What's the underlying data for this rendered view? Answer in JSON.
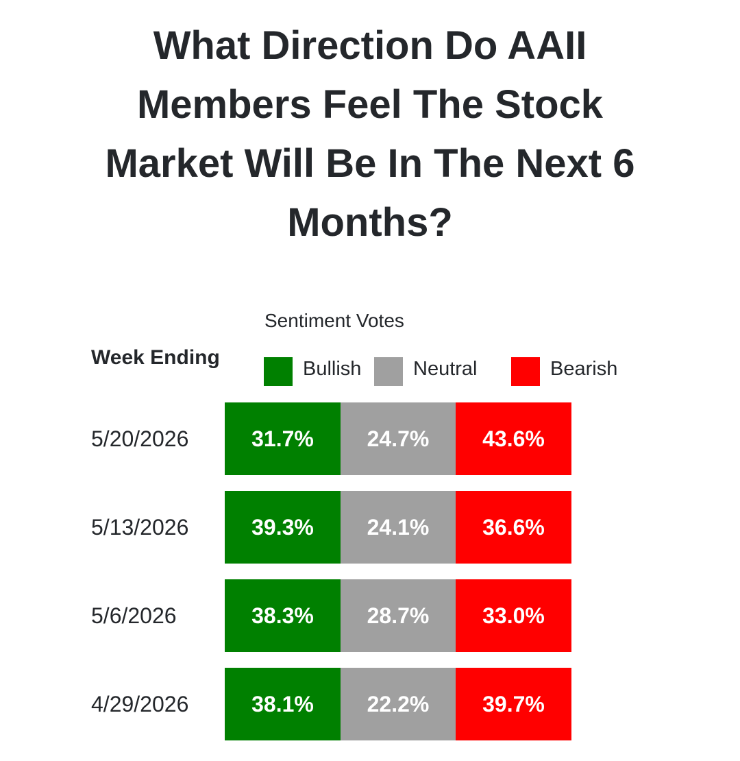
{
  "title": "What Direction Do AAII Members Feel The Stock Market Will Be In The Next 6 Months?",
  "subtitle": "Sentiment Votes",
  "row_header": "Week Ending",
  "legend": [
    {
      "label": "Bullish",
      "color": "#008000"
    },
    {
      "label": "Neutral",
      "color": "#a0a0a0"
    },
    {
      "label": "Bearish",
      "color": "#ff0000"
    }
  ],
  "rows": [
    {
      "week": "5/20/2026",
      "cells": [
        "31.7%",
        "24.7%",
        "43.6%"
      ]
    },
    {
      "week": "5/13/2026",
      "cells": [
        "39.3%",
        "24.1%",
        "36.6%"
      ]
    },
    {
      "week": "5/6/2026",
      "cells": [
        "38.3%",
        "28.7%",
        "33.0%"
      ]
    },
    {
      "week": "4/29/2026",
      "cells": [
        "38.1%",
        "22.2%",
        "39.7%"
      ]
    }
  ]
}
